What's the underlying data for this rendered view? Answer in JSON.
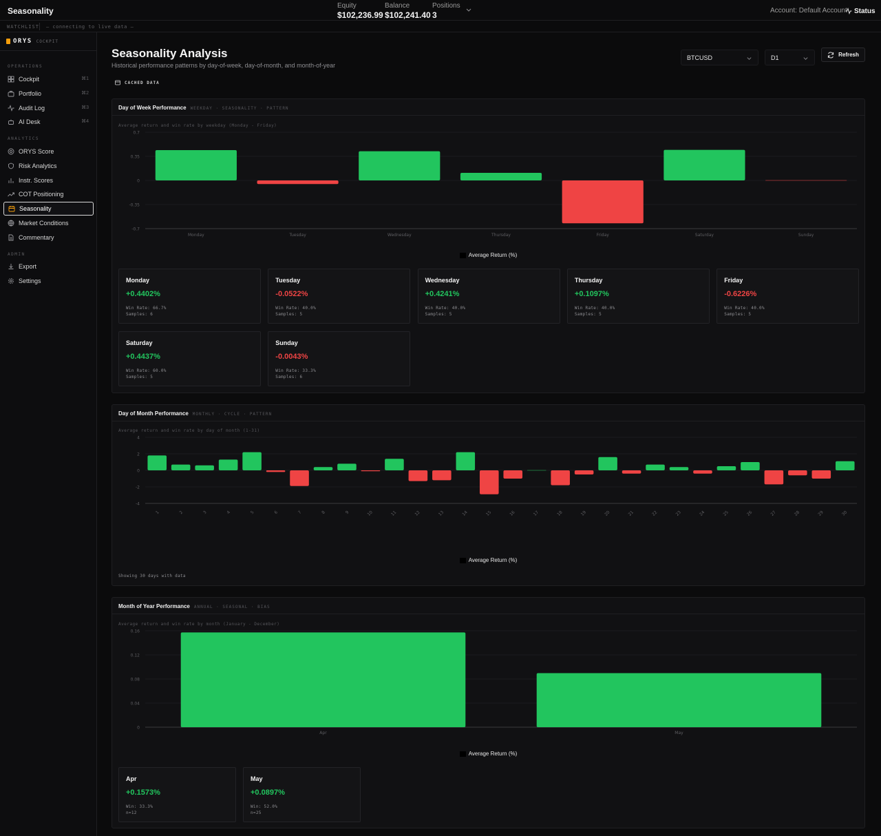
{
  "topbar": {
    "title": "Seasonality",
    "equity_label": "Equity",
    "equity": "$102,236.99",
    "balance_label": "Balance",
    "balance": "$102,241.40",
    "positions_label": "Positions",
    "positions": "3",
    "account_label": "Account:",
    "account": "Default Account",
    "status": "Status"
  },
  "watchlist": {
    "label": "WATCHLIST",
    "connecting": "— connecting to live data —"
  },
  "sidebar": {
    "brand": "ORYS",
    "brand_sub": "COCKPIT",
    "sections": {
      "operations": "OPERATIONS",
      "analytics": "ANALYTICS",
      "admin": "ADMIN"
    },
    "operations": [
      {
        "label": "Cockpit",
        "kbd": "⌘1",
        "icon": "grid-icon"
      },
      {
        "label": "Portfolio",
        "kbd": "⌘2",
        "icon": "briefcase-icon"
      },
      {
        "label": "Audit Log",
        "kbd": "⌘3",
        "icon": "activity-icon"
      },
      {
        "label": "AI Desk",
        "kbd": "⌘4",
        "icon": "bot-icon"
      }
    ],
    "analytics": [
      {
        "label": "ORYS Score",
        "icon": "target-icon"
      },
      {
        "label": "Risk Analytics",
        "icon": "shield-icon"
      },
      {
        "label": "Instr. Scores",
        "icon": "bar-chart-icon"
      },
      {
        "label": "COT Positioning",
        "icon": "trending-up-icon"
      },
      {
        "label": "Seasonality",
        "icon": "calendar-icon",
        "active": true
      },
      {
        "label": "Market Conditions",
        "icon": "globe-icon"
      },
      {
        "label": "Commentary",
        "icon": "file-text-icon"
      }
    ],
    "admin": [
      {
        "label": "Export",
        "icon": "download-icon"
      },
      {
        "label": "Settings",
        "icon": "gear-icon"
      }
    ]
  },
  "page": {
    "title": "Seasonality Analysis",
    "subtitle": "Historical performance patterns by day-of-week, day-of-month, and month-of-year",
    "symbol": "BTCUSD",
    "timeframe": "D1",
    "refresh": "Refresh",
    "cached": "CACHED DATA"
  },
  "colors": {
    "positive": "#22c55e",
    "negative": "#ef4444"
  },
  "dow": {
    "title": "Day of Week Performance",
    "tag": "WEEKDAY · SEASONALITY · PATTERN",
    "desc": "Average return and win rate by weekday (Monday - Friday)",
    "legend": "Average Return (%)",
    "cards": [
      {
        "name": "Monday",
        "value": "+0.4402%",
        "win": "Win Rate: 66.7%",
        "samples": "Samples: 6"
      },
      {
        "name": "Tuesday",
        "value": "-0.0522%",
        "win": "Win Rate: 40.0%",
        "samples": "Samples: 5"
      },
      {
        "name": "Wednesday",
        "value": "+0.4241%",
        "win": "Win Rate: 40.0%",
        "samples": "Samples: 5"
      },
      {
        "name": "Thursday",
        "value": "+0.1097%",
        "win": "Win Rate: 40.0%",
        "samples": "Samples: 5"
      },
      {
        "name": "Friday",
        "value": "-0.6226%",
        "win": "Win Rate: 40.0%",
        "samples": "Samples: 5"
      },
      {
        "name": "Saturday",
        "value": "+0.4437%",
        "win": "Win Rate: 60.0%",
        "samples": "Samples: 5"
      },
      {
        "name": "Sunday",
        "value": "-0.0043%",
        "win": "Win Rate: 33.3%",
        "samples": "Samples: 6"
      }
    ]
  },
  "dom": {
    "title": "Day of Month Performance",
    "tag": "MONTHLY · CYCLE · PATTERN",
    "desc": "Average return and win rate by day of month (1-31)",
    "legend": "Average Return (%)",
    "footer": "Showing 30 days with data"
  },
  "moy": {
    "title": "Month of Year Performance",
    "tag": "ANNUAL · SEASONAL · BIAS",
    "desc": "Average return and win rate by month (January - December)",
    "legend": "Average Return (%)",
    "cards": [
      {
        "name": "Apr",
        "value": "+0.1573%",
        "win": "Win: 33.3%",
        "n": "n=12"
      },
      {
        "name": "May",
        "value": "+0.0897%",
        "win": "Win: 52.0%",
        "n": "n=25"
      }
    ]
  },
  "chart_data": [
    {
      "type": "bar",
      "categories": [
        "Monday",
        "Tuesday",
        "Wednesday",
        "Thursday",
        "Friday",
        "Saturday",
        "Sunday"
      ],
      "series": [
        {
          "name": "Average Return (%)",
          "values": [
            0.4402,
            -0.0522,
            0.4241,
            0.1097,
            -0.6226,
            0.4437,
            -0.0043
          ]
        }
      ],
      "ylim": [
        -0.7,
        0.7
      ],
      "yticks": [
        "0.7",
        "0.35",
        "0",
        "-0.35",
        "-0.7"
      ]
    },
    {
      "type": "bar",
      "categories": [
        "1",
        "2",
        "3",
        "4",
        "5",
        "6",
        "7",
        "8",
        "9",
        "10",
        "11",
        "12",
        "13",
        "14",
        "15",
        "16",
        "17",
        "18",
        "19",
        "20",
        "21",
        "22",
        "23",
        "24",
        "25",
        "26",
        "27",
        "28",
        "29",
        "30"
      ],
      "series": [
        {
          "name": "Average Return (%)",
          "values": [
            1.8,
            0.7,
            0.6,
            1.3,
            2.2,
            -0.2,
            -1.9,
            0.4,
            0.8,
            -0.1,
            1.4,
            -1.3,
            -1.2,
            2.2,
            -2.9,
            -1.0,
            0.0,
            -1.8,
            -0.5,
            1.6,
            -0.4,
            0.7,
            0.4,
            -0.4,
            0.5,
            1.0,
            -1.7,
            -0.6,
            -1.0,
            1.1
          ]
        }
      ],
      "ylim": [
        -4,
        4
      ],
      "yticks": [
        "4",
        "2",
        "0",
        "-2",
        "-4"
      ]
    },
    {
      "type": "bar",
      "categories": [
        "Apr",
        "May"
      ],
      "series": [
        {
          "name": "Average Return (%)",
          "values": [
            0.1573,
            0.0897
          ]
        }
      ],
      "ylim": [
        0,
        0.16
      ],
      "yticks": [
        "0.16",
        "0.12",
        "0.08",
        "0.04",
        "0"
      ]
    }
  ]
}
